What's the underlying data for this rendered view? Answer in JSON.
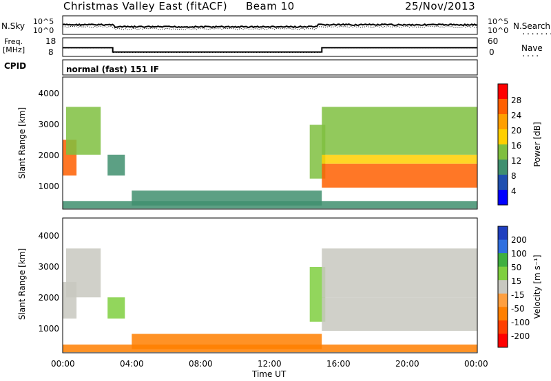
{
  "header": {
    "station": "Christmas Valley East (fitACF)",
    "beam": "Beam 10",
    "date": "25/Nov/2013"
  },
  "strip_panels": {
    "nsky_label": "N.Sky",
    "nsearch_label": "N.Search",
    "nsky_ticks": [
      "10^5",
      "10^0"
    ],
    "nsearch_ticks": [
      "10^5",
      "10^0"
    ],
    "freq_label_line1": "Freq.",
    "freq_label_line2": "[MHz]",
    "freq_ticks": [
      "18",
      "8"
    ],
    "nave_label": "Nave",
    "nave_ticks": [
      "60",
      "0"
    ],
    "cpid_label": "CPID",
    "cpid_value": "normal (fast) 151 IF"
  },
  "power_panel": {
    "ylabel": "Slant Range [km]",
    "yticks": [
      "4000",
      "3000",
      "2000",
      "1000"
    ],
    "colorbar_label": "Power [dB]",
    "colorbar_ticks": [
      "28",
      "24",
      "20",
      "16",
      "12",
      "8",
      "4"
    ],
    "colors": [
      "#0000ff",
      "#1f4fb0",
      "#3f8f6f",
      "#7fbf3f",
      "#ffcf00",
      "#ff9f00",
      "#ff5f00",
      "#ff0000"
    ]
  },
  "velocity_panel": {
    "ylabel": "Slant Range [km]",
    "yticks": [
      "4000",
      "3000",
      "2000",
      "1000"
    ],
    "colorbar_label": "Velocity [m s⁻¹]",
    "colorbar_ticks": [
      "200",
      "100",
      "50",
      "15",
      "-15",
      "-50",
      "-100",
      "-200"
    ],
    "colors": [
      "#1f3fbf",
      "#2f6fdf",
      "#3faf3f",
      "#7fcf3f",
      "#c8c8c0",
      "#ff9f3f",
      "#ff7f00",
      "#ff3f00",
      "#ff0000"
    ]
  },
  "x_axis": {
    "ticks": [
      "00:00",
      "04:00",
      "08:00",
      "12:00",
      "16:00",
      "20:00",
      "00:00"
    ],
    "label": "Time UT"
  },
  "chart_data": {
    "type": "heatmap",
    "x_range_hours": [
      0,
      24
    ],
    "y_range_km": [
      180,
      4600
    ],
    "frequency_mhz": {
      "x_hours": [
        0.0,
        2.9,
        2.9,
        15.0,
        15.0,
        24.0
      ],
      "values": [
        12.6,
        12.6,
        9.9,
        9.9,
        12.6,
        12.6
      ]
    },
    "nave": {
      "x_hours": [
        0.0,
        2.9,
        2.9,
        15.0,
        15.0,
        24.0
      ],
      "values": [
        27,
        27,
        9,
        9,
        27,
        27
      ]
    },
    "power_regions": [
      {
        "t_start": 0.0,
        "t_end": 0.8,
        "r_min": 1300,
        "r_max": 2500,
        "level_db": 24
      },
      {
        "t_start": 0.2,
        "t_end": 2.2,
        "r_min": 2000,
        "r_max": 3600,
        "level_db": 14
      },
      {
        "t_start": 2.6,
        "t_end": 3.6,
        "r_min": 1300,
        "r_max": 2000,
        "level_db": 8
      },
      {
        "t_start": 0.0,
        "t_end": 24.0,
        "r_min": 200,
        "r_max": 450,
        "level_db": 8
      },
      {
        "t_start": 4.0,
        "t_end": 15.0,
        "r_min": 300,
        "r_max": 800,
        "level_db": 10
      },
      {
        "t_start": 14.3,
        "t_end": 15.2,
        "r_min": 1200,
        "r_max": 3000,
        "level_db": 14
      },
      {
        "t_start": 15.0,
        "t_end": 24.0,
        "r_min": 900,
        "r_max": 1700,
        "level_db": 26
      },
      {
        "t_start": 15.0,
        "t_end": 24.0,
        "r_min": 1700,
        "r_max": 2000,
        "level_db": 18
      },
      {
        "t_start": 15.0,
        "t_end": 24.0,
        "r_min": 2000,
        "r_max": 3600,
        "level_db": 14
      }
    ],
    "velocity_regions": [
      {
        "t_start": 0.0,
        "t_end": 0.8,
        "r_min": 1300,
        "r_max": 2500,
        "velocity": 0
      },
      {
        "t_start": 0.2,
        "t_end": 2.2,
        "r_min": 2000,
        "r_max": 3600,
        "velocity": 0
      },
      {
        "t_start": 2.6,
        "t_end": 3.6,
        "r_min": 1300,
        "r_max": 2000,
        "velocity": 30
      },
      {
        "t_start": 0.0,
        "t_end": 24.0,
        "r_min": 200,
        "r_max": 450,
        "velocity": -60
      },
      {
        "t_start": 4.0,
        "t_end": 15.0,
        "r_min": 300,
        "r_max": 800,
        "velocity": -80
      },
      {
        "t_start": 14.3,
        "t_end": 15.2,
        "r_min": 1200,
        "r_max": 3000,
        "velocity": 40
      },
      {
        "t_start": 15.0,
        "t_end": 24.0,
        "r_min": 900,
        "r_max": 2000,
        "velocity": 0
      },
      {
        "t_start": 15.0,
        "t_end": 24.0,
        "r_min": 2000,
        "r_max": 3600,
        "velocity": 0
      }
    ]
  }
}
